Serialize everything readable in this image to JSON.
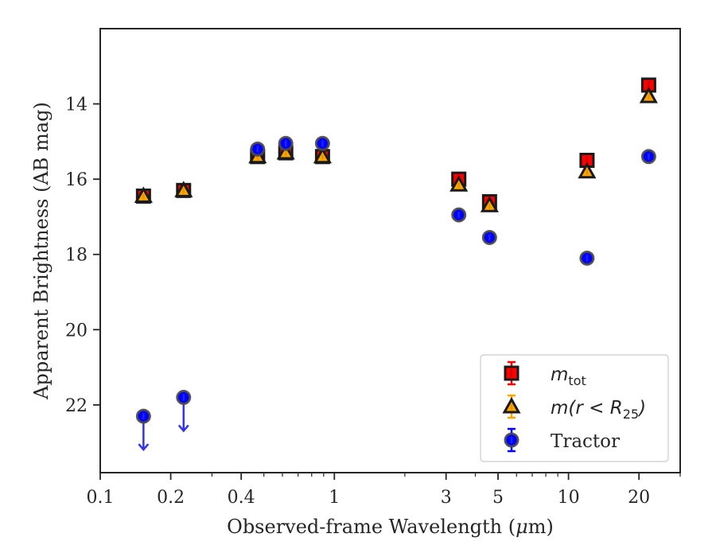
{
  "chart_data": {
    "type": "scatter",
    "xlabel": "Observed-frame Wavelength (μm)",
    "xlabel_plain": "Observed-frame Wavelength (",
    "xlabel_mu": "μ",
    "xlabel_tail": "m)",
    "ylabel": "Apparent Brightness (AB mag)",
    "x_scale": "log",
    "xlim": [
      0.1,
      30
    ],
    "ylim": [
      23.8,
      12.0
    ],
    "y_inverted": true,
    "grid": false,
    "legend_position": "lower-right",
    "x_ticks": [
      0.1,
      0.2,
      0.4,
      1,
      3,
      5,
      10,
      20
    ],
    "x_tick_labels": [
      "0.1",
      "0.2",
      "0.4",
      "1",
      "3",
      "5",
      "10",
      "20"
    ],
    "y_ticks": [
      14,
      16,
      18,
      20,
      22
    ],
    "y_tick_labels": [
      "14",
      "16",
      "18",
      "20",
      "22"
    ],
    "series": [
      {
        "name": "m_tot",
        "label_main": "m",
        "label_sub": "tot",
        "marker": "square",
        "color": "#ff0000",
        "points": [
          {
            "x": 0.153,
            "y": 16.45
          },
          {
            "x": 0.227,
            "y": 16.3
          },
          {
            "x": 0.47,
            "y": 15.4
          },
          {
            "x": 0.62,
            "y": 15.3
          },
          {
            "x": 0.89,
            "y": 15.4
          },
          {
            "x": 3.4,
            "y": 16.0
          },
          {
            "x": 4.6,
            "y": 16.6
          },
          {
            "x": 12.0,
            "y": 15.5
          },
          {
            "x": 22.0,
            "y": 13.5
          }
        ]
      },
      {
        "name": "m(r < R_25)",
        "label_main": "m(r < R",
        "label_sub": "25",
        "label_close": ")",
        "marker": "triangle",
        "color": "#ffa500",
        "points": [
          {
            "x": 0.153,
            "y": 16.45
          },
          {
            "x": 0.227,
            "y": 16.3
          },
          {
            "x": 0.47,
            "y": 15.4
          },
          {
            "x": 0.62,
            "y": 15.3
          },
          {
            "x": 0.89,
            "y": 15.4
          },
          {
            "x": 3.4,
            "y": 16.15
          },
          {
            "x": 4.6,
            "y": 16.7
          },
          {
            "x": 12.0,
            "y": 15.8
          },
          {
            "x": 22.0,
            "y": 13.8
          }
        ]
      },
      {
        "name": "Tractor",
        "marker": "circle",
        "color": "#0000ff",
        "points": [
          {
            "x": 0.153,
            "y": 22.3,
            "upper_limit": true
          },
          {
            "x": 0.227,
            "y": 21.8,
            "upper_limit": true
          },
          {
            "x": 0.47,
            "y": 15.2
          },
          {
            "x": 0.62,
            "y": 15.05
          },
          {
            "x": 0.89,
            "y": 15.05
          },
          {
            "x": 3.4,
            "y": 16.95
          },
          {
            "x": 4.6,
            "y": 17.55
          },
          {
            "x": 12.0,
            "y": 18.1
          },
          {
            "x": 22.0,
            "y": 15.4
          }
        ]
      }
    ]
  }
}
